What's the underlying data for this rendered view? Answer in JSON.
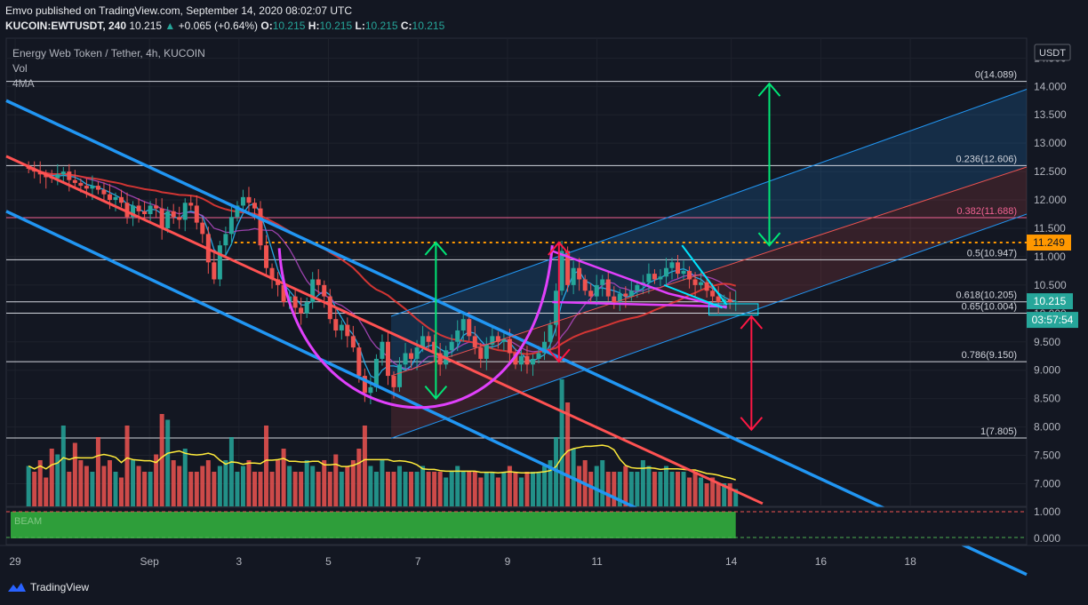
{
  "header": {
    "publisher": "Emvo published on TradingView.com, September 14, 2020 08:02:07 UTC",
    "symbol": "KUCOIN:EWTUSDT, 240",
    "last": "10.215",
    "change": "+0.065 (+0.64%)",
    "o_label": "O:",
    "o": "10.215",
    "h_label": "H:",
    "h": "10.215",
    "l_label": "L:",
    "l": "10.215",
    "c_label": "C:",
    "c": "10.215"
  },
  "legend": {
    "title": "Energy Web Token / Tether, 4h, KUCOIN",
    "vol": "Vol",
    "ma": "4MA",
    "indicator": "BEAM"
  },
  "currency": "USDT",
  "footer": {
    "brand": "TradingView"
  },
  "colors": {
    "background": "#131722",
    "up": "#26a69a",
    "down": "#ef5350",
    "channel": "#2196f3",
    "resistance": "#ff5252",
    "pattern": "#e040fb",
    "arrow_up": "#00e676",
    "arrow_down": "#ff1744",
    "dotted_level": "#ff9800",
    "wedge": "#00e5ff"
  },
  "chart_data": {
    "type": "candlestick",
    "y_range": [
      6.6,
      14.85
    ],
    "y_ticks": [
      "14.500",
      "14.000",
      "13.500",
      "13.000",
      "12.500",
      "12.000",
      "11.500",
      "11.000",
      "10.500",
      "10.000",
      "9.500",
      "9.000",
      "8.500",
      "8.000",
      "7.500",
      "7.000"
    ],
    "y_tick_values": [
      14.5,
      14.0,
      13.5,
      13.0,
      12.5,
      12.0,
      11.5,
      11.0,
      10.5,
      10.0,
      9.5,
      9.0,
      8.5,
      8.0,
      7.5,
      7.0
    ],
    "x_ticks": [
      {
        "label": "29",
        "day": 0
      },
      {
        "label": "Sep",
        "day": 3
      },
      {
        "label": "3",
        "day": 5
      },
      {
        "label": "5",
        "day": 7
      },
      {
        "label": "7",
        "day": 9
      },
      {
        "label": "9",
        "day": 11
      },
      {
        "label": "11",
        "day": 13
      },
      {
        "label": "14",
        "day": 16
      },
      {
        "label": "16",
        "day": 18
      },
      {
        "label": "18",
        "day": 20
      }
    ],
    "x_day_range": [
      -0.2,
      22.6
    ],
    "fib_levels": [
      {
        "label": "0(14.089)",
        "value": 14.089
      },
      {
        "label": "0.236(12.606)",
        "value": 12.606
      },
      {
        "label": "0.382(11.688)",
        "value": 11.688
      },
      {
        "label": "0.5(10.947)",
        "value": 10.947
      },
      {
        "label": "0.618(10.205)",
        "value": 10.205
      },
      {
        "label": "0.65(10.004)",
        "value": 10.004
      },
      {
        "label": "0.786(9.150)",
        "value": 9.15
      },
      {
        "label": "1(7.805)",
        "value": 7.805
      }
    ],
    "dotted_level": {
      "label": "11.249",
      "value": 11.249
    },
    "price_label": {
      "label": "10.215",
      "value": 10.215
    },
    "countdown": "03:57:54",
    "indicator_scale": {
      "ticks": [
        "1.000",
        "0.000"
      ]
    },
    "closes": [
      12.55,
      12.5,
      12.45,
      12.4,
      12.38,
      12.45,
      12.5,
      12.35,
      12.3,
      12.25,
      12.2,
      12.25,
      12.18,
      12.1,
      12.0,
      12.05,
      11.95,
      11.7,
      11.9,
      11.8,
      11.75,
      11.9,
      11.85,
      11.5,
      11.8,
      11.7,
      11.65,
      11.95,
      11.9,
      11.6,
      11.4,
      10.9,
      10.6,
      11.2,
      11.4,
      11.7,
      11.9,
      12.05,
      11.95,
      11.85,
      11.2,
      10.8,
      10.6,
      10.5,
      10.2,
      10.3,
      10.1,
      10.0,
      10.2,
      10.6,
      10.5,
      10.3,
      9.9,
      9.7,
      9.8,
      9.6,
      9.4,
      8.9,
      8.6,
      8.7,
      9.2,
      9.5,
      8.9,
      8.7,
      9.1,
      9.3,
      9.2,
      9.4,
      9.6,
      9.5,
      9.3,
      9.1,
      9.35,
      9.5,
      9.7,
      9.9,
      9.6,
      9.4,
      9.2,
      9.45,
      9.6,
      9.5,
      9.55,
      9.3,
      9.1,
      9.25,
      9.1,
      9.2,
      9.3,
      9.5,
      9.8,
      10.4,
      11.1,
      10.5,
      10.8,
      10.6,
      10.4,
      10.3,
      10.5,
      10.6,
      10.3,
      10.2,
      10.35,
      10.3,
      10.4,
      10.5,
      10.55,
      10.7,
      10.6,
      10.65,
      10.8,
      10.9,
      10.7,
      10.75,
      10.6,
      10.5,
      10.55,
      10.4,
      10.3,
      10.2,
      10.25,
      10.2,
      10.215
    ],
    "volumes": [
      0.35,
      0.3,
      0.4,
      0.25,
      0.5,
      0.45,
      0.7,
      0.3,
      0.55,
      0.4,
      0.35,
      0.3,
      0.6,
      0.35,
      0.4,
      0.3,
      0.25,
      0.7,
      0.4,
      0.35,
      0.3,
      0.3,
      0.45,
      0.8,
      0.75,
      0.4,
      0.35,
      0.5,
      0.3,
      0.3,
      0.35,
      0.4,
      0.3,
      0.35,
      0.4,
      0.6,
      0.3,
      0.35,
      0.4,
      0.3,
      0.3,
      0.7,
      0.3,
      0.4,
      0.5,
      0.35,
      0.3,
      0.3,
      0.4,
      0.35,
      0.3,
      0.4,
      0.3,
      0.45,
      0.3,
      0.35,
      0.4,
      0.5,
      0.7,
      0.35,
      0.3,
      0.4,
      0.3,
      0.3,
      0.35,
      0.3,
      0.3,
      0.3,
      0.35,
      0.3,
      0.3,
      0.3,
      0.25,
      0.3,
      0.35,
      0.3,
      0.3,
      0.3,
      0.25,
      0.3,
      0.3,
      0.25,
      0.3,
      0.35,
      0.3,
      0.25,
      0.3,
      0.3,
      0.3,
      0.35,
      0.4,
      0.6,
      1.1,
      0.9,
      0.5,
      0.35,
      0.4,
      0.3,
      0.35,
      0.4,
      0.3,
      0.3,
      0.3,
      0.35,
      0.3,
      0.3,
      0.4,
      0.35,
      0.3,
      0.3,
      0.35,
      0.3,
      0.3,
      0.3,
      0.25,
      0.3,
      0.25,
      0.2,
      0.25,
      0.2,
      0.2,
      0.2,
      0.15
    ]
  }
}
